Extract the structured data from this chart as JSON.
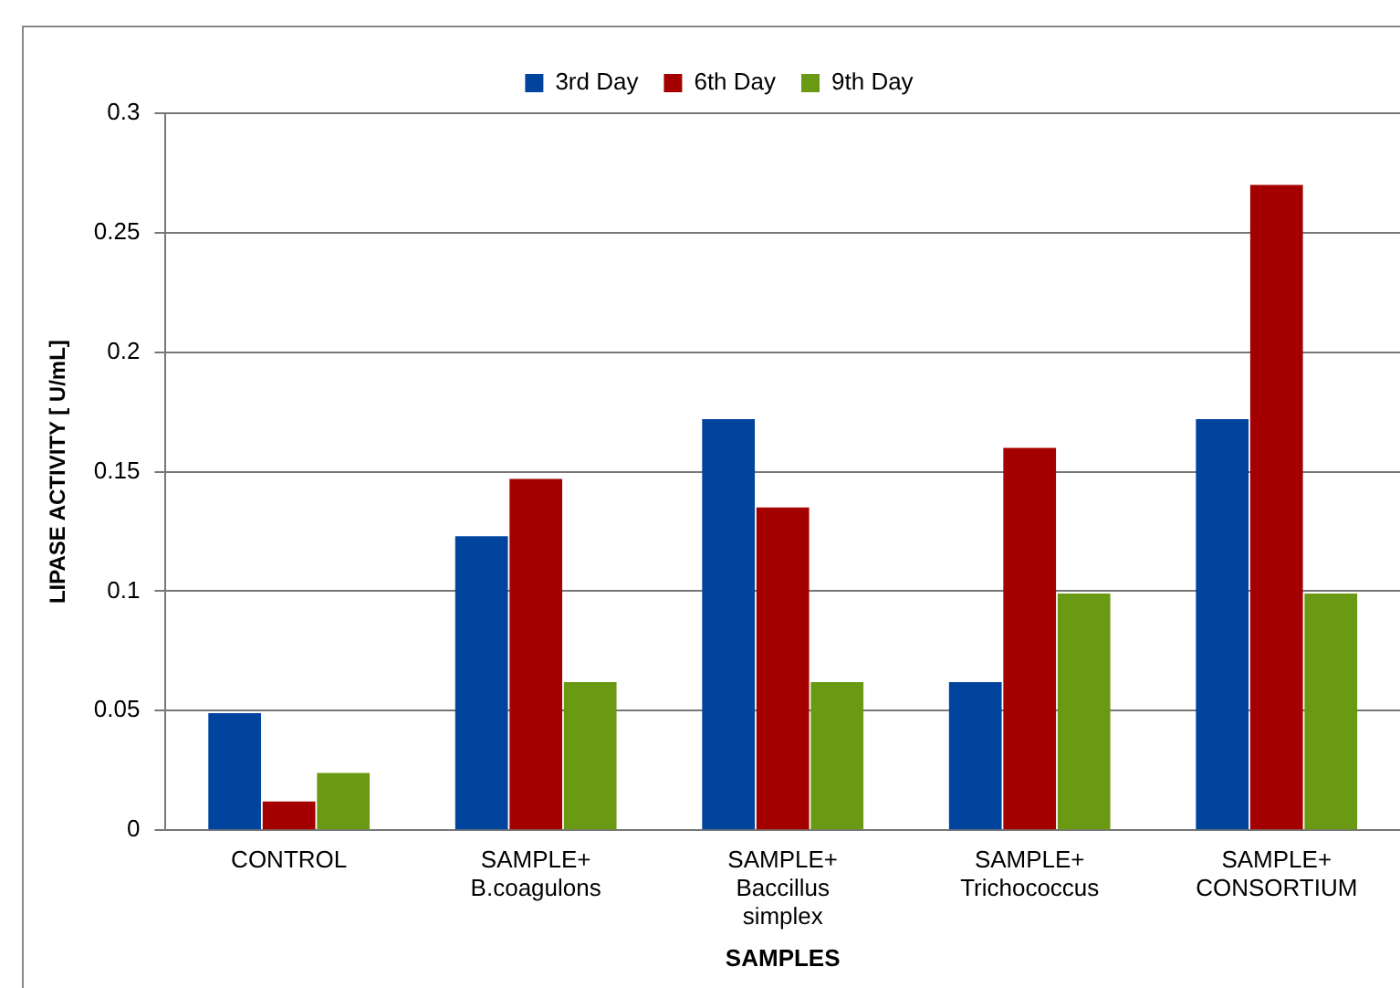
{
  "chart_data": {
    "type": "bar",
    "xlabel": "SAMPLES",
    "ylabel": "LIPASE ACTIVITY [ U/mL]",
    "categories": [
      "CONTROL",
      "SAMPLE+\nB.coagulons",
      "SAMPLE+\nBaccillus\nsimplex",
      "SAMPLE+\nTrichococcus",
      "SAMPLE+\nCONSORTIUM"
    ],
    "series": [
      {
        "name": "3rd Day",
        "color": "#00449e",
        "values": [
          0.049,
          0.123,
          0.172,
          0.062,
          0.172
        ]
      },
      {
        "name": "6th Day",
        "color": "#a50000",
        "values": [
          0.012,
          0.147,
          0.135,
          0.16,
          0.27
        ]
      },
      {
        "name": "9th Day",
        "color": "#6a9a14",
        "values": [
          0.024,
          0.062,
          0.062,
          0.099,
          0.099
        ]
      }
    ],
    "ylim": [
      0,
      0.3
    ],
    "yticks": [
      0,
      0.05,
      0.1,
      0.15,
      0.2,
      0.25,
      0.3
    ],
    "grid": "y",
    "legend": "top"
  }
}
